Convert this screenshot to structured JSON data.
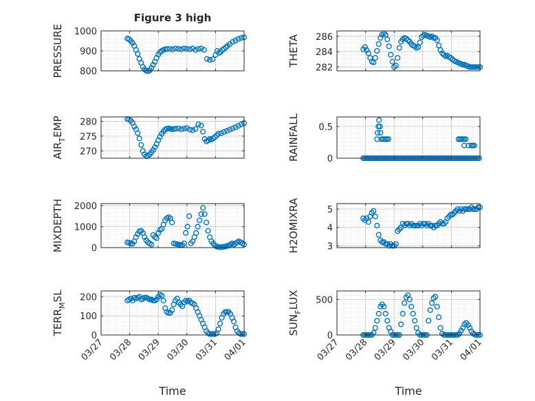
{
  "figure": {
    "background": "#ffffff",
    "marker_color": "#0072BD",
    "grid": "dotted"
  },
  "chart_data": [
    {
      "type": "scatter",
      "title": "Figure 3 high",
      "ylabel": {
        "main": "PRESSURE",
        "sub": ""
      },
      "xlabel": "",
      "xticklabels": [],
      "ylim": [
        800,
        1000
      ],
      "yticks": [
        800,
        900,
        1000
      ],
      "yticklabels": [
        "800",
        "900",
        "1000"
      ],
      "x": [
        0.92,
        0.98,
        1.04,
        1.1,
        1.16,
        1.22,
        1.28,
        1.34,
        1.4,
        1.46,
        1.52,
        1.58,
        1.64,
        1.7,
        1.76,
        1.82,
        1.88,
        1.94,
        2.0,
        2.06,
        2.12,
        2.18,
        2.24,
        2.3,
        2.4,
        2.5,
        2.6,
        2.7,
        2.8,
        2.9,
        3.0,
        3.1,
        3.2,
        3.3,
        3.4,
        3.5,
        3.6,
        3.7,
        3.8,
        3.9,
        4.0,
        4.06,
        4.12,
        4.18,
        4.24,
        4.3,
        4.36,
        4.42,
        4.5,
        4.6,
        4.7,
        4.8,
        4.9,
        5.0
      ],
      "y": [
        962,
        958,
        950,
        940,
        925,
        905,
        885,
        860,
        840,
        820,
        808,
        800,
        798,
        803,
        815,
        830,
        845,
        865,
        882,
        893,
        900,
        905,
        908,
        910,
        910,
        908,
        912,
        910,
        908,
        912,
        910,
        908,
        912,
        905,
        910,
        912,
        905,
        860,
        855,
        858,
        880,
        900,
        890,
        895,
        905,
        910,
        918,
        925,
        935,
        945,
        952,
        960,
        965,
        968
      ]
    },
    {
      "type": "scatter",
      "title": "",
      "ylabel": {
        "main": "THETA",
        "sub": ""
      },
      "xlabel": "",
      "xticklabels": [],
      "ylim": [
        281.5,
        286.7
      ],
      "yticks": [
        282,
        284,
        286
      ],
      "yticklabels": [
        "282",
        "284",
        "286"
      ],
      "x": [
        0.92,
        0.98,
        1.04,
        1.1,
        1.16,
        1.22,
        1.28,
        1.34,
        1.4,
        1.46,
        1.52,
        1.58,
        1.64,
        1.7,
        1.76,
        1.82,
        1.88,
        1.94,
        2.0,
        2.06,
        2.12,
        2.18,
        2.24,
        2.3,
        2.36,
        2.42,
        2.48,
        2.54,
        2.6,
        2.66,
        2.72,
        2.78,
        2.84,
        2.9,
        2.96,
        3.02,
        3.08,
        3.14,
        3.2,
        3.26,
        3.32,
        3.38,
        3.44,
        3.5,
        3.56,
        3.62,
        3.68,
        3.74,
        3.8,
        3.86,
        3.92,
        3.98,
        4.04,
        4.1,
        4.16,
        4.22,
        4.28,
        4.34,
        4.4,
        4.46,
        4.52,
        4.58,
        4.64,
        4.7,
        4.76,
        4.82,
        4.88,
        4.94,
        5.0
      ],
      "y": [
        284.3,
        284.6,
        284.2,
        283.8,
        283.2,
        282.7,
        282.6,
        283.2,
        284.1,
        285.0,
        285.8,
        286.2,
        286.4,
        286.2,
        285.6,
        284.7,
        283.6,
        282.7,
        282.0,
        282.2,
        283.2,
        284.5,
        285.3,
        285.6,
        285.8,
        285.7,
        285.5,
        285.3,
        285.0,
        284.8,
        284.7,
        284.5,
        284.6,
        285.2,
        285.9,
        286.1,
        286.2,
        286.1,
        286.0,
        285.9,
        286.0,
        285.8,
        285.8,
        285.5,
        284.8,
        284.2,
        283.8,
        283.6,
        283.4,
        283.5,
        283.3,
        283.2,
        283.0,
        282.8,
        282.7,
        282.6,
        282.5,
        282.4,
        282.3,
        282.3,
        282.2,
        282.1,
        282.0,
        282.0,
        282.0,
        282.0,
        282.0,
        282.0,
        282.0
      ]
    },
    {
      "type": "scatter",
      "title": "",
      "ylabel": {
        "main": "AIR",
        "sub": "T",
        "rest": "EMP"
      },
      "xlabel": "",
      "xticklabels": [],
      "ylim": [
        267.5,
        281.5
      ],
      "yticks": [
        270,
        275,
        280
      ],
      "yticklabels": [
        "270",
        "275",
        "280"
      ],
      "x": [
        0.92,
        0.98,
        1.04,
        1.1,
        1.16,
        1.22,
        1.28,
        1.34,
        1.4,
        1.46,
        1.52,
        1.58,
        1.64,
        1.7,
        1.76,
        1.82,
        1.88,
        1.94,
        2.0,
        2.06,
        2.12,
        2.18,
        2.24,
        2.3,
        2.36,
        2.42,
        2.48,
        2.54,
        2.6,
        2.7,
        2.8,
        2.9,
        3.0,
        3.1,
        3.2,
        3.3,
        3.4,
        3.5,
        3.56,
        3.62,
        3.68,
        3.74,
        3.8,
        3.86,
        3.92,
        3.98,
        4.04,
        4.1,
        4.2,
        4.3,
        4.4,
        4.5,
        4.6,
        4.7,
        4.8,
        4.9,
        5.0
      ],
      "y": [
        280.8,
        280.6,
        280.2,
        279.5,
        278.2,
        277.3,
        276.0,
        274.2,
        272.0,
        270.0,
        268.8,
        268.2,
        268.3,
        268.8,
        269.5,
        270.3,
        271.2,
        272.3,
        273.6,
        274.8,
        275.8,
        276.6,
        277.2,
        277.5,
        277.6,
        277.5,
        277.3,
        277.4,
        277.5,
        277.6,
        277.3,
        277.5,
        277.7,
        277.2,
        277.0,
        277.4,
        279.0,
        278.6,
        276.5,
        274.0,
        273.2,
        273.5,
        274.0,
        273.8,
        274.2,
        274.7,
        275.2,
        275.8,
        276.0,
        276.4,
        276.8,
        277.2,
        277.6,
        278.0,
        278.5,
        279.0,
        279.4
      ]
    },
    {
      "type": "scatter",
      "title": "",
      "ylabel": {
        "main": "RAINFALL",
        "sub": ""
      },
      "xlabel": "",
      "xticklabels": [],
      "ylim": [
        0,
        0.65
      ],
      "yticks": [
        0,
        0.5
      ],
      "yticklabels": [
        "0",
        "0.5"
      ],
      "x": [
        0.92,
        0.97,
        1.02,
        1.07,
        1.12,
        1.17,
        1.22,
        1.27,
        1.32,
        1.37,
        1.42,
        1.47,
        1.52,
        1.57,
        1.62,
        1.67,
        1.72,
        1.77,
        1.82,
        1.87,
        1.92,
        1.97,
        2.02,
        2.07,
        2.12,
        2.17,
        2.22,
        2.27,
        2.32,
        2.37,
        2.42,
        2.47,
        2.52,
        2.57,
        2.62,
        2.67,
        2.72,
        2.77,
        2.82,
        2.87,
        2.92,
        2.97,
        3.02,
        3.07,
        3.12,
        3.17,
        3.22,
        3.27,
        3.32,
        3.37,
        3.42,
        3.47,
        3.52,
        3.57,
        3.62,
        3.67,
        3.72,
        3.77,
        3.82,
        3.87,
        3.92,
        3.97,
        4.02,
        4.07,
        4.12,
        4.17,
        4.22,
        4.27,
        4.32,
        4.37,
        4.42,
        4.47,
        4.52,
        4.57,
        4.62,
        4.67,
        4.72,
        4.77,
        4.82,
        4.87,
        4.92,
        4.97,
        1.4,
        1.42,
        1.45,
        1.47,
        1.5,
        1.52,
        1.55,
        1.6,
        1.65,
        1.7,
        1.75,
        1.8,
        4.25,
        4.3,
        4.35,
        4.4,
        4.45,
        4.5,
        4.6,
        4.7,
        4.75,
        4.8,
        4.35,
        4.45,
        4.75
      ],
      "y": [
        0,
        0,
        0,
        0,
        0,
        0,
        0,
        0,
        0,
        0,
        0,
        0,
        0,
        0,
        0,
        0,
        0,
        0,
        0,
        0,
        0,
        0,
        0,
        0,
        0,
        0,
        0,
        0,
        0,
        0,
        0,
        0,
        0,
        0,
        0,
        0,
        0,
        0,
        0,
        0,
        0,
        0,
        0,
        0,
        0,
        0,
        0,
        0,
        0,
        0,
        0,
        0,
        0,
        0,
        0,
        0,
        0,
        0,
        0,
        0,
        0,
        0,
        0,
        0,
        0,
        0,
        0,
        0,
        0,
        0,
        0,
        0,
        0,
        0,
        0,
        0,
        0,
        0,
        0,
        0,
        0,
        0,
        0.3,
        0.4,
        0.5,
        0.6,
        0.5,
        0.4,
        0.3,
        0.3,
        0.3,
        0.3,
        0.3,
        0.3,
        0.3,
        0.3,
        0.3,
        0.3,
        0.3,
        0.3,
        0.2,
        0.2,
        0.2,
        0.2,
        0.3,
        0.2,
        0.2
      ]
    },
    {
      "type": "scatter",
      "title": "",
      "ylabel": {
        "main": "MIXDEPTH",
        "sub": ""
      },
      "xlabel": "",
      "xticklabels": [],
      "ylim": [
        0,
        2100
      ],
      "yticks": [
        0,
        1000,
        2000
      ],
      "yticklabels": [
        "0",
        "1000",
        "2000"
      ],
      "x": [
        0.92,
        0.98,
        1.04,
        1.1,
        1.16,
        1.22,
        1.28,
        1.34,
        1.4,
        1.46,
        1.52,
        1.58,
        1.64,
        1.7,
        1.76,
        1.82,
        1.88,
        1.94,
        2.0,
        2.06,
        2.12,
        2.18,
        2.24,
        2.3,
        2.36,
        2.42,
        2.48,
        2.54,
        2.6,
        2.66,
        2.72,
        2.78,
        2.84,
        2.9,
        2.96,
        3.02,
        3.08,
        3.14,
        3.2,
        3.26,
        3.32,
        3.38,
        3.44,
        3.5,
        3.56,
        3.62,
        3.68,
        3.74,
        3.8,
        3.86,
        3.92,
        3.98,
        4.04,
        4.1,
        4.16,
        4.22,
        4.28,
        4.34,
        4.4,
        4.46,
        4.52,
        4.58,
        4.64,
        4.7,
        4.76,
        4.82,
        4.88,
        4.94,
        5.0
      ],
      "y": [
        250,
        230,
        200,
        180,
        300,
        500,
        650,
        780,
        800,
        700,
        500,
        350,
        250,
        200,
        150,
        600,
        500,
        450,
        700,
        850,
        900,
        1100,
        1300,
        1400,
        1450,
        1400,
        1200,
        200,
        180,
        160,
        150,
        130,
        120,
        200,
        700,
        1000,
        1500,
        200,
        300,
        500,
        700,
        1000,
        1300,
        1600,
        1900,
        1600,
        1200,
        800,
        500,
        300,
        200,
        100,
        50,
        30,
        20,
        20,
        40,
        50,
        80,
        100,
        150,
        200,
        150,
        200,
        250,
        300,
        250,
        200,
        150
      ]
    },
    {
      "type": "scatter",
      "title": "",
      "ylabel": {
        "main": "H2OMIXRA",
        "sub": ""
      },
      "xlabel": "",
      "xticklabels": [],
      "ylim": [
        2.9,
        5.3
      ],
      "yticks": [
        3,
        4,
        5
      ],
      "yticklabels": [
        "3",
        "4",
        "5"
      ],
      "x": [
        0.92,
        0.98,
        1.04,
        1.1,
        1.16,
        1.22,
        1.28,
        1.34,
        1.4,
        1.46,
        1.52,
        1.58,
        1.64,
        1.7,
        1.76,
        1.82,
        1.88,
        1.94,
        2.0,
        2.06,
        2.12,
        2.18,
        2.24,
        2.3,
        2.36,
        2.42,
        2.48,
        2.54,
        2.6,
        2.66,
        2.72,
        2.78,
        2.84,
        2.9,
        2.96,
        3.02,
        3.08,
        3.14,
        3.2,
        3.26,
        3.32,
        3.38,
        3.44,
        3.5,
        3.56,
        3.62,
        3.68,
        3.74,
        3.8,
        3.86,
        3.92,
        3.98,
        4.04,
        4.1,
        4.16,
        4.22,
        4.28,
        4.34,
        4.4,
        4.46,
        4.52,
        4.58,
        4.64,
        4.7,
        4.76,
        4.82,
        4.88,
        4.94,
        5.0
      ],
      "y": [
        4.5,
        4.4,
        4.5,
        4.3,
        4.6,
        4.8,
        4.9,
        4.6,
        4.1,
        3.6,
        3.3,
        3.2,
        3.2,
        3.1,
        3.1,
        3.0,
        3.1,
        3.0,
        3.0,
        3.1,
        3.8,
        3.9,
        4.0,
        4.2,
        4.1,
        4.2,
        4.2,
        4.1,
        4.2,
        4.1,
        4.1,
        4.1,
        4.1,
        4.2,
        4.1,
        4.2,
        4.2,
        4.1,
        4.2,
        4.1,
        4.1,
        4.0,
        4.1,
        4.1,
        4.2,
        4.3,
        4.2,
        4.2,
        4.3,
        4.5,
        4.6,
        4.7,
        4.7,
        4.8,
        4.9,
        5.0,
        4.9,
        5.0,
        4.9,
        5.0,
        5.0,
        5.0,
        5.0,
        5.1,
        5.0,
        5.0,
        5.0,
        5.1,
        5.1
      ]
    },
    {
      "type": "scatter",
      "title": "",
      "ylabel": {
        "main": "TERR",
        "sub": "M",
        "rest": "SL"
      },
      "xlabel": "Time",
      "xticklabels": [
        "03/27",
        "03/28",
        "03/29",
        "03/30",
        "03/31",
        "04/01"
      ],
      "ylim": [
        0,
        230
      ],
      "yticks": [
        0,
        100,
        200
      ],
      "yticklabels": [
        "0",
        "100",
        "200"
      ],
      "x": [
        0.92,
        0.98,
        1.04,
        1.1,
        1.16,
        1.22,
        1.28,
        1.34,
        1.4,
        1.46,
        1.52,
        1.58,
        1.64,
        1.7,
        1.76,
        1.82,
        1.88,
        1.94,
        2.0,
        2.06,
        2.12,
        2.18,
        2.24,
        2.3,
        2.36,
        2.42,
        2.48,
        2.54,
        2.6,
        2.66,
        2.72,
        2.78,
        2.84,
        2.9,
        2.96,
        3.02,
        3.08,
        3.14,
        3.2,
        3.26,
        3.32,
        3.38,
        3.44,
        3.5,
        3.56,
        3.62,
        3.68,
        3.74,
        3.8,
        3.86,
        3.92,
        3.98,
        4.04,
        4.1,
        4.16,
        4.22,
        4.28,
        4.34,
        4.4,
        4.46,
        4.52,
        4.58,
        4.64,
        4.7,
        4.76,
        4.82,
        4.88,
        4.94,
        5.0
      ],
      "y": [
        180,
        185,
        190,
        180,
        195,
        190,
        195,
        200,
        185,
        190,
        195,
        195,
        190,
        185,
        185,
        180,
        180,
        185,
        200,
        210,
        205,
        180,
        140,
        120,
        115,
        115,
        130,
        160,
        180,
        190,
        170,
        160,
        150,
        170,
        180,
        175,
        180,
        170,
        165,
        160,
        140,
        120,
        100,
        80,
        60,
        40,
        20,
        10,
        5,
        5,
        5,
        5,
        10,
        30,
        60,
        90,
        110,
        120,
        120,
        120,
        110,
        90,
        70,
        40,
        20,
        10,
        5,
        5,
        5
      ]
    },
    {
      "type": "scatter",
      "title": "",
      "ylabel": {
        "main": "SUN",
        "sub": "F",
        "rest": "LUX"
      },
      "xlabel": "Time",
      "xticklabels": [
        "03/27",
        "03/28",
        "03/29",
        "03/30",
        "03/31",
        "04/01"
      ],
      "ylim": [
        0,
        620
      ],
      "yticks": [
        0,
        500
      ],
      "yticklabels": [
        "0",
        "500"
      ],
      "x": [
        0.92,
        0.98,
        1.04,
        1.1,
        1.16,
        1.22,
        1.28,
        1.34,
        1.4,
        1.46,
        1.52,
        1.58,
        1.64,
        1.7,
        1.76,
        1.82,
        1.88,
        1.94,
        2.0,
        2.06,
        2.12,
        2.18,
        2.24,
        2.3,
        2.36,
        2.42,
        2.48,
        2.54,
        2.6,
        2.66,
        2.72,
        2.78,
        2.84,
        2.9,
        2.96,
        3.02,
        3.08,
        3.14,
        3.2,
        3.26,
        3.32,
        3.38,
        3.44,
        3.5,
        3.56,
        3.62,
        3.68,
        3.74,
        3.8,
        3.86,
        3.92,
        3.98,
        4.04,
        4.1,
        4.16,
        4.22,
        4.28,
        4.34,
        4.4,
        4.46,
        4.52,
        4.58,
        4.64,
        4.7,
        4.76,
        4.82,
        4.88,
        4.94,
        5.0
      ],
      "y": [
        0,
        0,
        0,
        0,
        0,
        0,
        30,
        100,
        200,
        300,
        400,
        430,
        400,
        300,
        200,
        100,
        50,
        0,
        0,
        0,
        0,
        0,
        150,
        300,
        450,
        530,
        560,
        500,
        400,
        300,
        200,
        100,
        30,
        0,
        0,
        0,
        0,
        0,
        200,
        350,
        450,
        520,
        540,
        400,
        250,
        100,
        20,
        0,
        0,
        0,
        0,
        0,
        0,
        0,
        0,
        0,
        20,
        60,
        100,
        150,
        170,
        140,
        100,
        50,
        20,
        5,
        0,
        0,
        0
      ]
    }
  ]
}
